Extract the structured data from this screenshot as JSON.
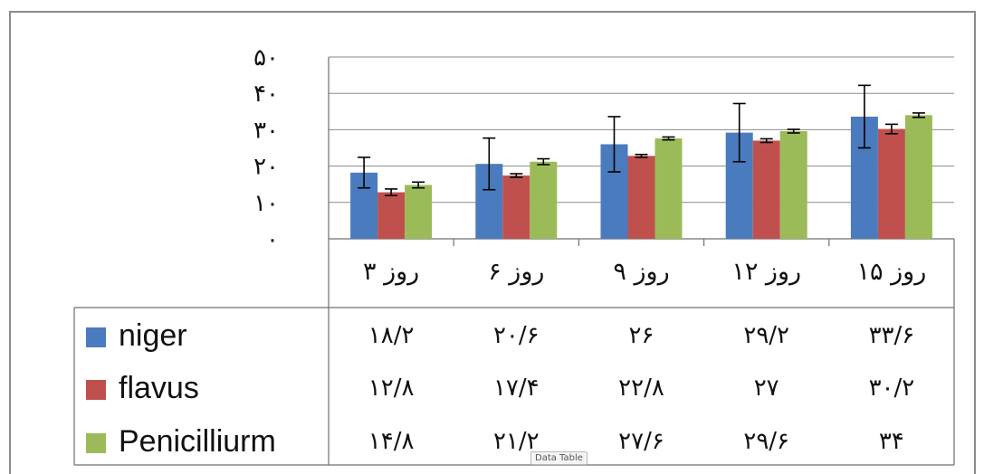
{
  "chart_data": {
    "type": "bar",
    "ylim": [
      0,
      50
    ],
    "ytick_values": [
      0,
      10,
      20,
      30,
      40,
      50
    ],
    "ytick_labels": [
      "۰",
      "۱۰",
      "۲۰",
      "۳۰",
      "۴۰",
      "۵۰"
    ],
    "grid": true,
    "legend": "data-table",
    "categories": [
      "روز ۳",
      "روز ۶",
      "روز ۹",
      "روز ۱۲",
      "روز ۱۵"
    ],
    "series": [
      {
        "name": "niger",
        "color": "#4a7bbf",
        "values": [
          18.2,
          20.6,
          26,
          29.2,
          33.6
        ],
        "value_labels": [
          "۱۸/۲",
          "۲۰/۶",
          "۲۶",
          "۲۹/۲",
          "۳۳/۶"
        ],
        "error": [
          4.2,
          7.1,
          7.6,
          8.0,
          8.6
        ]
      },
      {
        "name": "flavus",
        "color": "#c0504d",
        "values": [
          12.8,
          17.4,
          22.8,
          27,
          30.2
        ],
        "value_labels": [
          "۱۲/۸",
          "۱۷/۴",
          "۲۲/۸",
          "۲۷",
          "۳۰/۲"
        ],
        "error": [
          0.9,
          0.5,
          0.4,
          0.5,
          1.3
        ]
      },
      {
        "name": "Penicilliurm",
        "color": "#9bbb59",
        "values": [
          14.8,
          21.2,
          27.6,
          29.6,
          34
        ],
        "value_labels": [
          "۱۴/۸",
          "۲۱/۲",
          "۲۷/۶",
          "۲۹/۶",
          "۳۴"
        ],
        "error": [
          0.8,
          0.8,
          0.4,
          0.5,
          0.6
        ]
      }
    ]
  },
  "tooltip": "Data Table"
}
